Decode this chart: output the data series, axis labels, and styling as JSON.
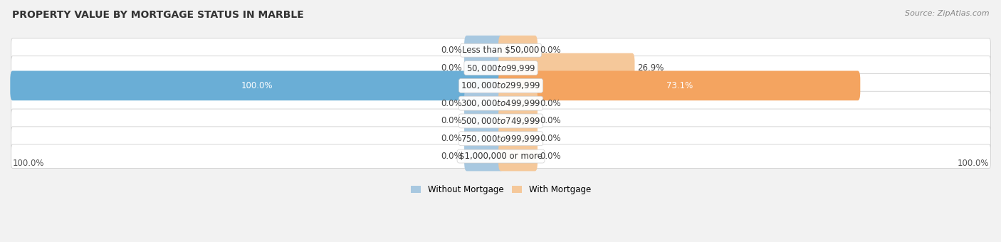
{
  "title": "PROPERTY VALUE BY MORTGAGE STATUS IN MARBLE",
  "source": "Source: ZipAtlas.com",
  "categories": [
    "Less than $50,000",
    "$50,000 to $99,999",
    "$100,000 to $299,999",
    "$300,000 to $499,999",
    "$500,000 to $749,999",
    "$750,000 to $999,999",
    "$1,000,000 or more"
  ],
  "without_mortgage": [
    0.0,
    0.0,
    100.0,
    0.0,
    0.0,
    0.0,
    0.0
  ],
  "with_mortgage": [
    0.0,
    26.9,
    73.1,
    0.0,
    0.0,
    0.0,
    0.0
  ],
  "color_without_full": "#6aaed6",
  "color_with_full": "#f4a460",
  "color_without_stub": "#a8c8e0",
  "color_with_stub": "#f5c89a",
  "bg_color": "#f2f2f2",
  "row_bg_color": "#ffffff",
  "row_border_color": "#d0d0d0",
  "title_fontsize": 10,
  "source_fontsize": 8,
  "label_fontsize": 8.5,
  "cat_fontsize": 8.5,
  "axis_max": 100.0,
  "stub_size": 7.0,
  "legend_label_without": "Without Mortgage",
  "legend_label_with": "With Mortgage",
  "bottom_left_label": "100.0%",
  "bottom_right_label": "100.0%"
}
